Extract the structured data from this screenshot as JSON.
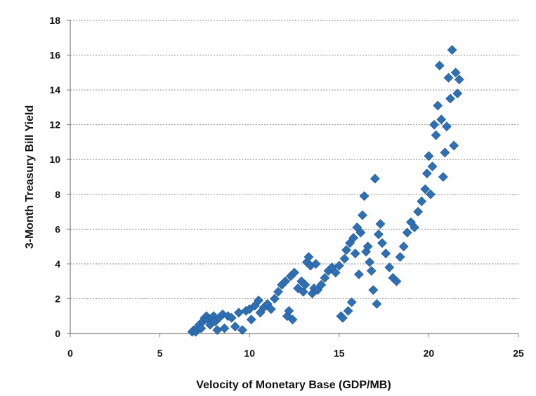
{
  "chart_data": {
    "type": "scatter",
    "title": "",
    "xlabel": "Velocity of Monetary Base (GDP/MB)",
    "ylabel": "3-Month Treasury Bill Yield",
    "xlim": [
      0,
      25
    ],
    "ylim": [
      0,
      18
    ],
    "x_ticks": [
      0,
      5,
      10,
      15,
      20,
      25
    ],
    "y_ticks": [
      0,
      2,
      4,
      6,
      8,
      10,
      12,
      14,
      16,
      18
    ],
    "grid": "horizontal-dashed",
    "legend": "none",
    "marker": "diamond",
    "marker_color": "#2f6fb4",
    "series": [
      {
        "values": [
          [
            6.8,
            0.1
          ],
          [
            6.9,
            0.2
          ],
          [
            7.0,
            0.1
          ],
          [
            7.1,
            0.3
          ],
          [
            7.2,
            0.5
          ],
          [
            7.3,
            0.3
          ],
          [
            7.4,
            0.7
          ],
          [
            7.5,
            0.9
          ],
          [
            7.6,
            1.0
          ],
          [
            7.7,
            0.8
          ],
          [
            7.8,
            0.5
          ],
          [
            7.9,
            0.9
          ],
          [
            8.0,
            1.0
          ],
          [
            8.1,
            0.7
          ],
          [
            8.2,
            0.2
          ],
          [
            8.3,
            0.9
          ],
          [
            8.5,
            1.1
          ],
          [
            8.6,
            0.3
          ],
          [
            8.8,
            1.0
          ],
          [
            9.0,
            0.9
          ],
          [
            9.2,
            0.4
          ],
          [
            9.4,
            1.2
          ],
          [
            9.6,
            0.2
          ],
          [
            9.8,
            1.3
          ],
          [
            10.0,
            1.4
          ],
          [
            10.1,
            0.8
          ],
          [
            10.3,
            1.6
          ],
          [
            10.5,
            1.9
          ],
          [
            10.6,
            1.2
          ],
          [
            10.8,
            1.5
          ],
          [
            11.0,
            1.7
          ],
          [
            11.2,
            1.4
          ],
          [
            11.4,
            2.0
          ],
          [
            11.6,
            2.4
          ],
          [
            11.8,
            2.8
          ],
          [
            12.0,
            3.0
          ],
          [
            12.1,
            1.0
          ],
          [
            12.2,
            1.3
          ],
          [
            12.3,
            3.3
          ],
          [
            12.4,
            0.8
          ],
          [
            12.5,
            3.5
          ],
          [
            12.7,
            2.6
          ],
          [
            12.9,
            3.0
          ],
          [
            13.0,
            2.4
          ],
          [
            13.1,
            2.8
          ],
          [
            13.2,
            4.1
          ],
          [
            13.3,
            4.4
          ],
          [
            13.4,
            3.9
          ],
          [
            13.5,
            2.3
          ],
          [
            13.6,
            2.6
          ],
          [
            13.7,
            4.0
          ],
          [
            13.8,
            2.5
          ],
          [
            14.0,
            2.8
          ],
          [
            14.2,
            3.2
          ],
          [
            14.4,
            3.6
          ],
          [
            14.6,
            3.8
          ],
          [
            14.8,
            3.5
          ],
          [
            15.0,
            3.9
          ],
          [
            15.1,
            1.0
          ],
          [
            15.2,
            0.9
          ],
          [
            15.3,
            4.3
          ],
          [
            15.4,
            4.8
          ],
          [
            15.5,
            1.3
          ],
          [
            15.6,
            5.2
          ],
          [
            15.7,
            1.8
          ],
          [
            15.8,
            5.5
          ],
          [
            15.9,
            4.6
          ],
          [
            16.0,
            6.1
          ],
          [
            16.1,
            3.4
          ],
          [
            16.2,
            5.8
          ],
          [
            16.3,
            6.8
          ],
          [
            16.4,
            7.9
          ],
          [
            16.5,
            4.7
          ],
          [
            16.6,
            5.0
          ],
          [
            16.7,
            4.1
          ],
          [
            16.8,
            3.6
          ],
          [
            16.9,
            2.5
          ],
          [
            17.0,
            8.9
          ],
          [
            17.1,
            1.7
          ],
          [
            17.2,
            5.7
          ],
          [
            17.3,
            6.3
          ],
          [
            17.4,
            5.2
          ],
          [
            17.6,
            4.6
          ],
          [
            17.8,
            3.8
          ],
          [
            18.0,
            3.2
          ],
          [
            18.2,
            3.0
          ],
          [
            18.4,
            4.4
          ],
          [
            18.6,
            5.0
          ],
          [
            18.8,
            5.8
          ],
          [
            19.0,
            6.4
          ],
          [
            19.2,
            6.1
          ],
          [
            19.4,
            7.0
          ],
          [
            19.6,
            7.6
          ],
          [
            19.8,
            8.3
          ],
          [
            19.9,
            9.2
          ],
          [
            20.0,
            10.2
          ],
          [
            20.1,
            8.0
          ],
          [
            20.2,
            9.6
          ],
          [
            20.3,
            12.0
          ],
          [
            20.4,
            11.4
          ],
          [
            20.5,
            13.1
          ],
          [
            20.6,
            15.4
          ],
          [
            20.7,
            12.3
          ],
          [
            20.8,
            9.0
          ],
          [
            20.9,
            10.4
          ],
          [
            21.0,
            11.9
          ],
          [
            21.1,
            14.7
          ],
          [
            21.2,
            13.5
          ],
          [
            21.3,
            16.3
          ],
          [
            21.4,
            10.8
          ],
          [
            21.5,
            15.0
          ],
          [
            21.6,
            13.8
          ],
          [
            21.7,
            14.6
          ]
        ]
      }
    ]
  }
}
